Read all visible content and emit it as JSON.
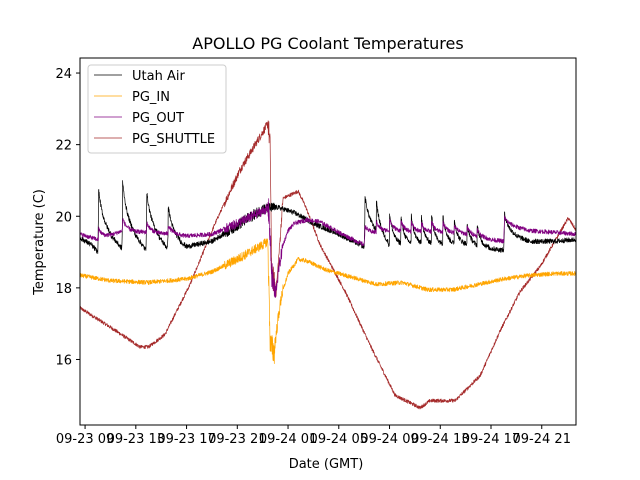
{
  "chart_data": {
    "type": "line",
    "title": "APOLLO PG Coolant Temperatures",
    "xlabel": "Date (GMT)",
    "ylabel": "Temperature (C)",
    "x_unit": "hours since 09-23 00:00 GMT",
    "xlim": [
      8.6,
      47.7
    ],
    "ylim": [
      14.17,
      24.42
    ],
    "grid": false,
    "legend_position": "top-left",
    "x_ticks": [
      {
        "value": 9,
        "label": "09-23 09"
      },
      {
        "value": 13,
        "label": "09-23 13"
      },
      {
        "value": 17,
        "label": "09-23 17"
      },
      {
        "value": 21,
        "label": "09-23 21"
      },
      {
        "value": 25,
        "label": "09-24 01"
      },
      {
        "value": 29,
        "label": "09-24 05"
      },
      {
        "value": 33,
        "label": "09-24 09"
      },
      {
        "value": 37,
        "label": "09-24 13"
      },
      {
        "value": 41,
        "label": "09-24 17"
      },
      {
        "value": 45,
        "label": "09-24 21"
      }
    ],
    "y_ticks": [
      {
        "value": 16,
        "label": "16"
      },
      {
        "value": 18,
        "label": "18"
      },
      {
        "value": 20,
        "label": "20"
      },
      {
        "value": 22,
        "label": "22"
      },
      {
        "value": 24,
        "label": "24"
      }
    ],
    "series": [
      {
        "name": "Utah Air",
        "color": "#000000",
        "x": [
          8.6,
          9.5,
          10.0,
          10.05,
          11.9,
          11.95,
          13.8,
          13.85,
          15.5,
          15.55,
          17.0,
          19.0,
          21.0,
          23.0,
          24.2,
          25.5,
          27.0,
          29.0,
          31.0,
          31.05,
          33.0,
          35.0,
          37.0,
          39.0,
          41.0,
          42.0,
          42.05,
          44.0,
          46.0,
          47.7
        ],
        "values": [
          19.4,
          19.2,
          19.0,
          19.9,
          19.1,
          20.0,
          19.05,
          19.9,
          19.1,
          19.6,
          19.15,
          19.3,
          19.75,
          20.2,
          20.25,
          20.1,
          19.8,
          19.5,
          19.15,
          19.9,
          19.2,
          19.2,
          19.2,
          19.2,
          19.1,
          19.05,
          19.6,
          19.3,
          19.3,
          19.35
        ],
        "notes": "periodic sawtooth spikes ~20.0-20.4 every ~1 h during 09-23 10:00-14:30 and 09-24 07:00-17:00"
      },
      {
        "name": "PG_IN",
        "color": "#FFA500",
        "x": [
          8.6,
          11.0,
          14.0,
          17.0,
          19.0,
          21.0,
          23.0,
          23.4,
          23.6,
          23.9,
          24.2,
          24.5,
          25.0,
          25.8,
          26.5,
          28.0,
          30.0,
          32.0,
          34.0,
          36.0,
          38.0,
          40.0,
          42.0,
          44.0,
          46.0,
          47.7
        ],
        "values": [
          18.35,
          18.2,
          18.15,
          18.25,
          18.45,
          18.8,
          19.2,
          19.3,
          16.4,
          16.2,
          17.1,
          17.8,
          18.4,
          18.8,
          18.75,
          18.5,
          18.3,
          18.1,
          18.15,
          17.95,
          17.95,
          18.1,
          18.25,
          18.35,
          18.4,
          18.4
        ]
      },
      {
        "name": "PG_OUT",
        "color": "#800080",
        "x": [
          8.6,
          10.0,
          12.0,
          14.0,
          16.0,
          17.0,
          19.0,
          21.0,
          23.3,
          23.5,
          23.7,
          24.0,
          24.3,
          24.6,
          25.0,
          25.5,
          26.5,
          27.5,
          29.0,
          31.0,
          31.05,
          33.0,
          35.0,
          37.0,
          39.0,
          41.0,
          42.0,
          42.05,
          44.0,
          46.0,
          47.7
        ],
        "values": [
          19.5,
          19.35,
          19.6,
          19.55,
          19.5,
          19.45,
          19.5,
          19.8,
          20.2,
          20.1,
          18.4,
          17.8,
          18.6,
          19.2,
          19.6,
          19.8,
          19.9,
          19.85,
          19.55,
          19.2,
          19.5,
          19.6,
          19.55,
          19.55,
          19.5,
          19.35,
          19.3,
          19.8,
          19.6,
          19.55,
          19.5
        ],
        "notes": "small sawtooth bumps matching Utah Air spikes"
      },
      {
        "name": "PG_SHUTTLE",
        "color": "#A52A2A",
        "x": [
          8.6,
          11.0,
          13.33,
          14.0,
          15.3,
          17.28,
          19.25,
          21.22,
          23.43,
          23.6,
          23.7,
          24.06,
          24.3,
          24.6,
          25.8,
          26.35,
          27.53,
          29.5,
          31.47,
          33.44,
          35.41,
          36.2,
          38.17,
          40.15,
          41.72,
          43.3,
          44.88,
          47.09,
          47.72
        ],
        "values": [
          17.44,
          16.9,
          16.35,
          16.35,
          16.7,
          18.1,
          19.8,
          21.3,
          22.6,
          21.9,
          18.5,
          17.9,
          19.0,
          20.5,
          20.7,
          20.3,
          19.2,
          17.9,
          16.4,
          15.0,
          14.65,
          14.85,
          14.85,
          15.55,
          16.8,
          17.9,
          18.6,
          19.95,
          19.6
        ]
      }
    ]
  }
}
